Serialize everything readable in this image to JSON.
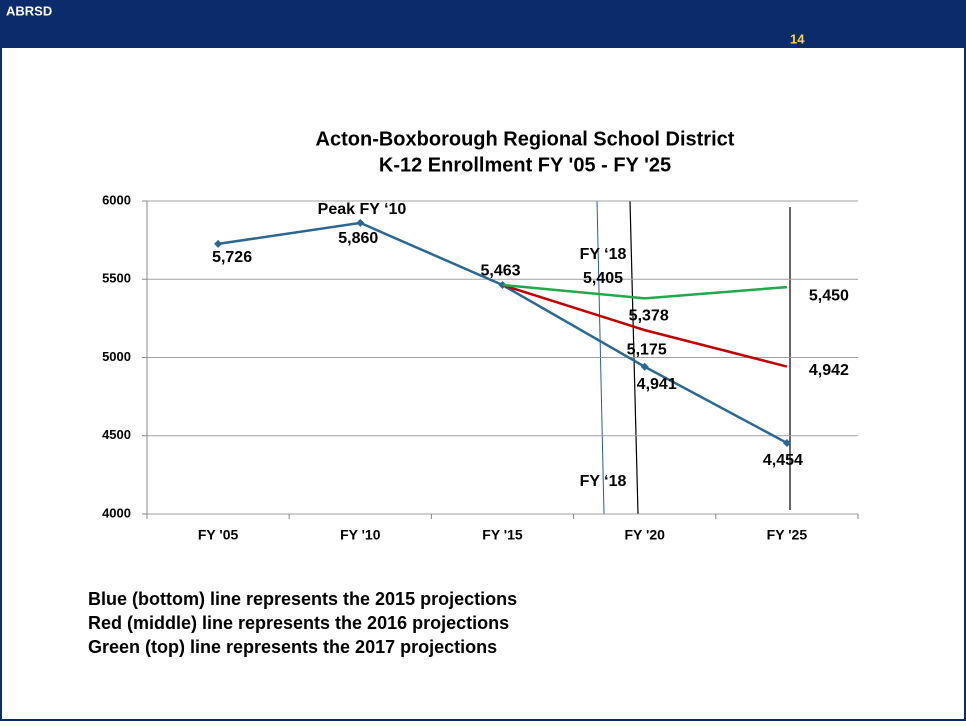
{
  "header": {
    "org": "ABRSD",
    "page": "14"
  },
  "chart_data": {
    "type": "line",
    "title": "Acton-Boxborough Regional School District",
    "subtitle": "K-12 Enrollment FY '05 - FY '25",
    "categories": [
      "FY '05",
      "FY '10",
      "FY '15",
      "FY '20",
      "FY '25"
    ],
    "series": [
      {
        "name": "2015 projections",
        "color": "#2a6791",
        "values": [
          5726,
          5860,
          5463,
          4941,
          4454
        ],
        "value_labels": [
          "5,726",
          "5,860",
          "5,463",
          "4,941",
          "4,454"
        ]
      },
      {
        "name": "2016 projections",
        "color": "#c00000",
        "values": [
          null,
          null,
          5463,
          5175,
          4942
        ],
        "value_labels": [
          null,
          null,
          null,
          "5,175",
          "4,942"
        ]
      },
      {
        "name": "2017 projections",
        "color": "#1faa4a",
        "values": [
          null,
          null,
          5463,
          5378,
          5450
        ],
        "value_labels": [
          null,
          null,
          null,
          "5,378",
          "5,450"
        ]
      }
    ],
    "ylim": [
      4000,
      6000
    ],
    "yticks": [
      4000,
      4500,
      5000,
      5500,
      6000
    ],
    "grid": true,
    "annotations": [
      "Peak FY ‘10",
      "FY ‘18",
      "5,405",
      "FY ‘18"
    ]
  },
  "notes": [
    "Blue (bottom) line represents the 2015 projections",
    "Red (middle) line represents the 2016 projections",
    "Green (top) line represents the 2017 projections"
  ]
}
